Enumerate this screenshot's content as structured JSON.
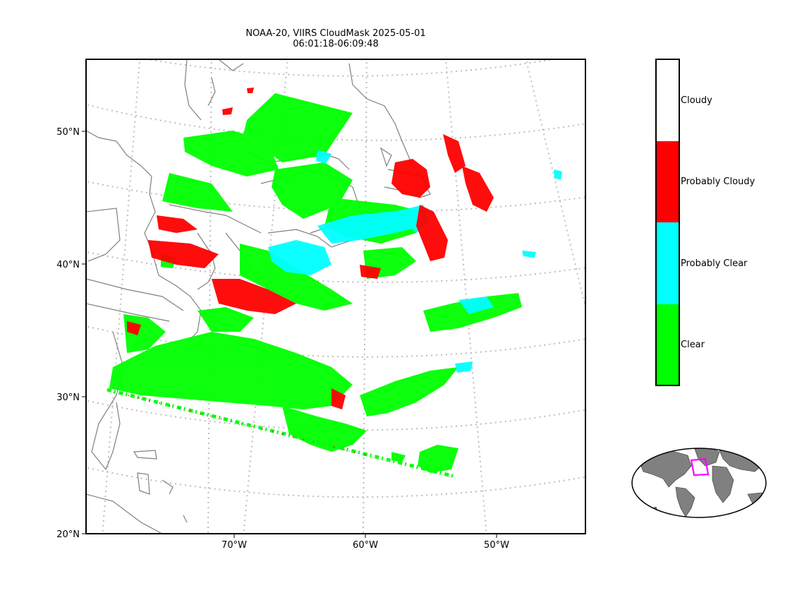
{
  "title": {
    "line1": "NOAA-20, VIIRS CloudMask 2025-05-01",
    "line2": "06:01:18-06:09:48"
  },
  "map": {
    "lat_ticks": [
      "50°N",
      "40°N",
      "30°N",
      "20°N"
    ],
    "lon_ticks": [
      "70°W",
      "60°W",
      "50°W"
    ],
    "gridlines": "dotted",
    "land_outline_color": "#808080"
  },
  "legend": {
    "type": "categorical colorbar",
    "placement": "right",
    "categories": [
      {
        "label": "Cloudy",
        "color": "#ffffff"
      },
      {
        "label": "Probably Cloudy",
        "color": "#ff0000"
      },
      {
        "label": "Probably Clear",
        "color": "#00ffff"
      },
      {
        "label": "Clear",
        "color": "#00ff00"
      }
    ]
  },
  "inset": {
    "description_visible": "global locator map",
    "highlight_color": "#ff00ff",
    "land_color": "#808080"
  }
}
